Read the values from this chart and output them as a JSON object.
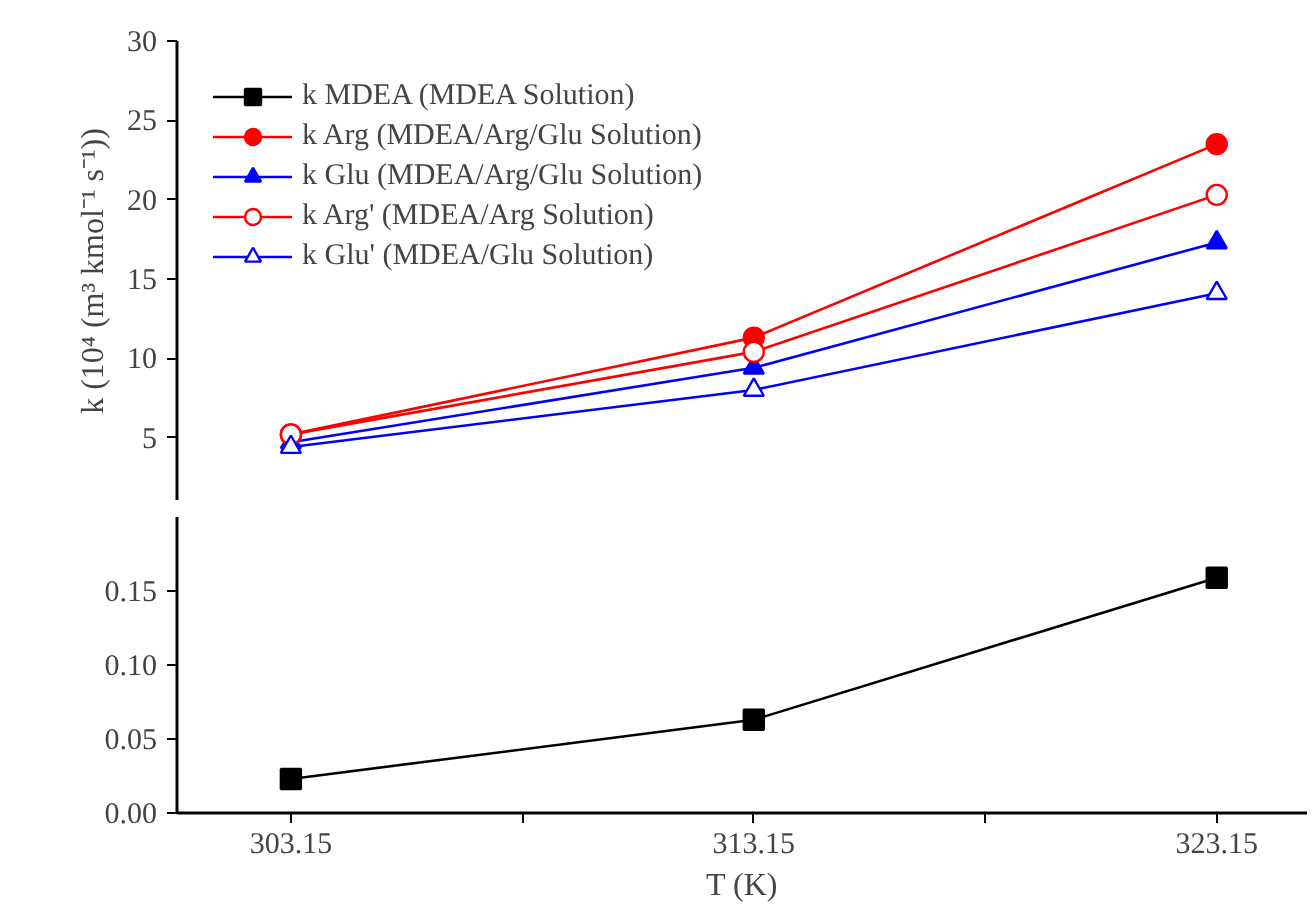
{
  "chart_data": [
    {
      "type": "line",
      "ylabel": "k (10⁴ (m³ kmol⁻¹ s⁻¹))",
      "x": [
        303.15,
        313.15,
        323.15
      ],
      "ylim": [
        1,
        30
      ],
      "yticks": [
        5,
        10,
        15,
        20,
        25,
        30
      ],
      "tick_labels": "y",
      "legend": "top left",
      "grid": false,
      "series": [
        {
          "name": "k Arg (MDEA/Arg/Glu Solution)",
          "color": "#ff0000",
          "marker": "circle",
          "values": [
            5.2,
            11.3,
            23.5
          ]
        },
        {
          "name": "k Glu (MDEA/Arg/Glu Solution)",
          "color": "#0000ff",
          "marker": "triangle",
          "values": [
            4.7,
            9.4,
            17.3
          ]
        },
        {
          "name": "k Arg' (MDEA/Arg Solution)",
          "color": "#ff0000",
          "marker": "circle_open",
          "values": [
            5.2,
            10.4,
            20.3
          ]
        },
        {
          "name": "k Glu' (MDEA/Glu Solution)",
          "color": "#0000ff",
          "marker": "triangle_open",
          "values": [
            4.4,
            8.0,
            14.1
          ]
        }
      ]
    },
    {
      "type": "line",
      "xlabel": "T (K)",
      "x": [
        303.15,
        313.15,
        323.15
      ],
      "xlim": [
        300.69,
        325.1
      ],
      "xticks": [
        303.15,
        {
          "value": 308.15,
          "label": null
        },
        313.15,
        {
          "value": 318.15,
          "label": null
        },
        323.15
      ],
      "ylim": [
        0,
        0.2
      ],
      "yticks": [
        {
          "value": 0,
          "label": "0.00"
        },
        0.05,
        {
          "value": 0.1,
          "label": "0.10"
        },
        0.15
      ],
      "grid": false,
      "series": [
        {
          "name": "k MDEA (MDEA Solution)",
          "color": "#000000",
          "marker": "square",
          "values": [
            0.023,
            0.063,
            0.159
          ]
        }
      ]
    }
  ]
}
